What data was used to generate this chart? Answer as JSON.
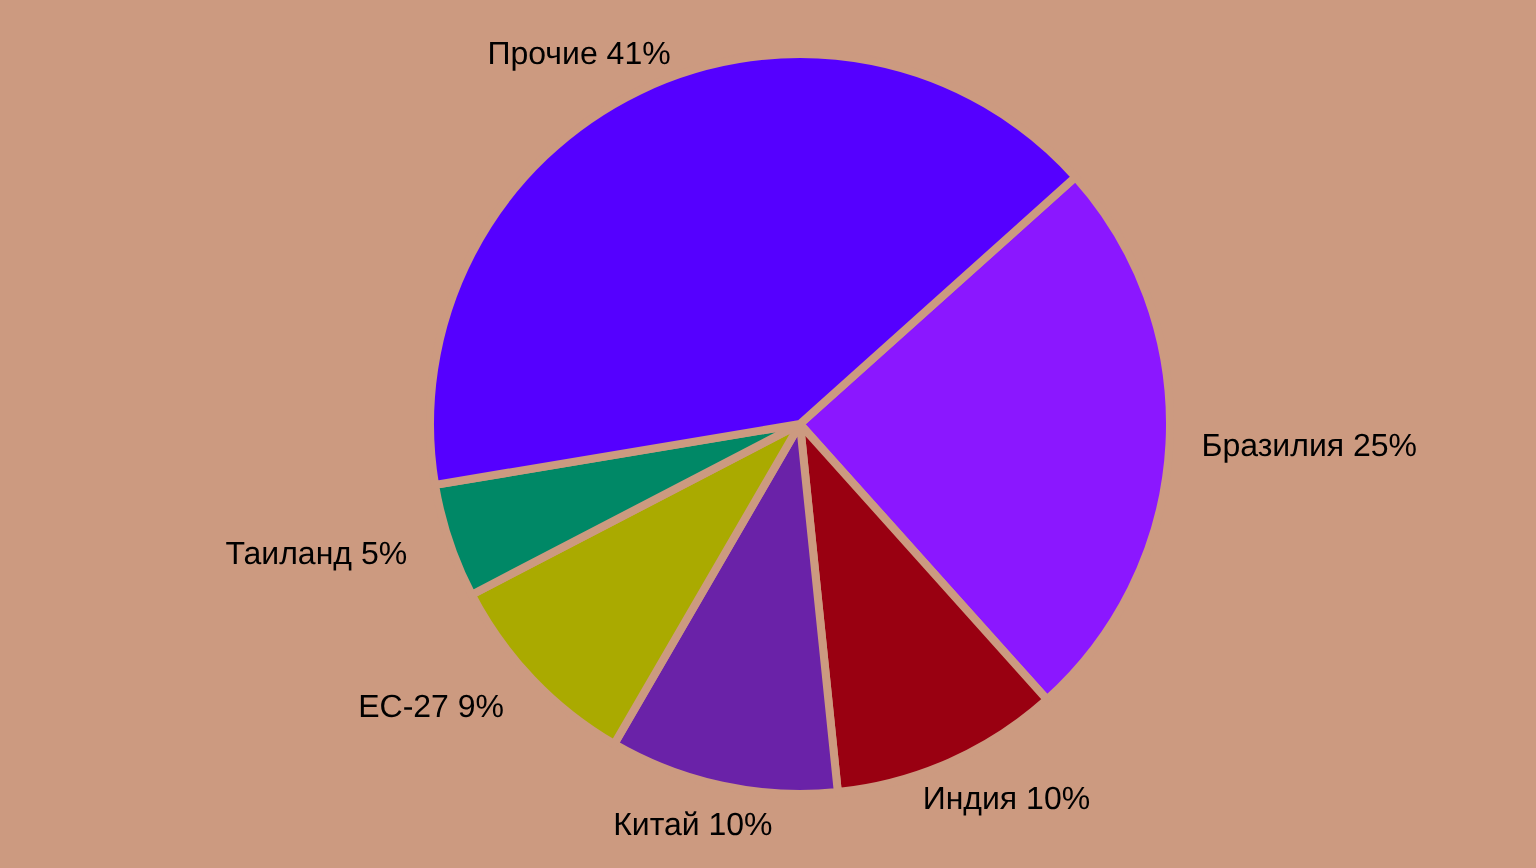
{
  "chart_data": {
    "type": "pie",
    "categories": [
      "Бразилия",
      "Индия",
      "Китай",
      "ЕС-27",
      "Таиланд",
      "Прочие"
    ],
    "values": [
      25,
      10,
      10,
      9,
      5,
      41
    ],
    "value_labels": [
      "25%",
      "10%",
      "10%",
      "9%",
      "5%",
      "41%"
    ],
    "colors": [
      "#8b17ff",
      "#990011",
      "#6a22a8",
      "#aaaa00",
      "#008866",
      "#5500ff"
    ]
  }
}
